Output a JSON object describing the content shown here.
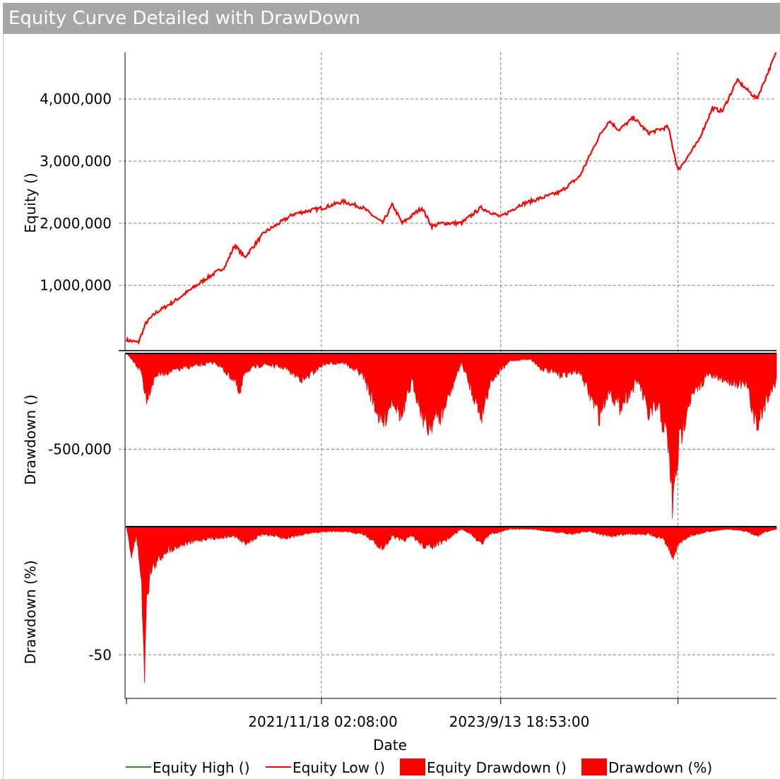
{
  "window": {
    "title": "Equity Curve Detailed with DrawDown"
  },
  "colors": {
    "equity_high": "#2e8b2e",
    "equity_low": "#ff0000",
    "fill": "#ff0000",
    "grid": "#808080"
  },
  "chart_data": {
    "type": "area",
    "title": "Equity Curve Detailed with DrawDown",
    "xlabel": "Date",
    "x_tick_labels": [
      "2021/11/18 02:08:00",
      "2023/9/13 18:53:00"
    ],
    "x_range_years": [
      2019.9,
      2026.5
    ],
    "x_ticks_years": [
      2021.88,
      2023.7
    ],
    "x_grid_years": [
      2019.9,
      2021.88,
      2023.7,
      2025.5
    ],
    "panels": [
      {
        "name": "equity",
        "ylabel": "Equity ()",
        "ylim": [
          -50000,
          4750000
        ],
        "yticks": [
          1000000,
          2000000,
          3000000,
          4000000
        ],
        "ytick_labels": [
          "1,000,000",
          "2,000,000",
          "3,000,000",
          "4,000,000"
        ],
        "series_x": [
          2019.9,
          2020.02,
          2020.1,
          2020.2,
          2020.4,
          2020.7,
          2020.9,
          2021.0,
          2021.1,
          2021.3,
          2021.45,
          2021.6,
          2021.9,
          2022.1,
          2022.3,
          2022.5,
          2022.6,
          2022.7,
          2022.9,
          2023.0,
          2023.1,
          2023.3,
          2023.5,
          2023.7,
          2023.9,
          2024.1,
          2024.3,
          2024.5,
          2024.7,
          2024.8,
          2024.9,
          2025.05,
          2025.2,
          2025.3,
          2025.4,
          2025.5,
          2025.7,
          2025.85,
          2025.95,
          2026.1,
          2026.3,
          2026.5
        ],
        "series": [
          {
            "name": "Equity High ()",
            "values": [
              120000,
              80000,
              400000,
              560000,
              760000,
              1100000,
              1300000,
              1650000,
              1450000,
              1850000,
              2000000,
              2150000,
              2250000,
              2350000,
              2250000,
              2000000,
              2300000,
              2000000,
              2250000,
              1950000,
              2000000,
              2000000,
              2250000,
              2100000,
              2300000,
              2400000,
              2500000,
              2750000,
              3400000,
              3650000,
              3500000,
              3700000,
              3450000,
              3500000,
              3550000,
              2850000,
              3300000,
              3850000,
              3800000,
              4300000,
              4000000,
              4750000
            ]
          },
          {
            "name": "Equity Low ()",
            "values": [
              120000,
              80000,
              400000,
              560000,
              760000,
              1100000,
              1300000,
              1650000,
              1450000,
              1850000,
              2000000,
              2150000,
              2250000,
              2350000,
              2250000,
              2000000,
              2300000,
              2000000,
              2250000,
              1950000,
              2000000,
              2000000,
              2250000,
              2100000,
              2300000,
              2400000,
              2500000,
              2750000,
              3400000,
              3650000,
              3500000,
              3700000,
              3450000,
              3500000,
              3550000,
              2850000,
              3300000,
              3850000,
              3800000,
              4300000,
              4000000,
              4750000
            ]
          }
        ]
      },
      {
        "name": "drawdown",
        "ylabel": "Drawdown ()",
        "ylim": [
          -900000,
          0
        ],
        "yticks": [
          -500000
        ],
        "ytick_labels": [
          "-500,000"
        ],
        "series_x": [
          2019.9,
          2020.05,
          2020.1,
          2020.2,
          2020.5,
          2020.8,
          2021.0,
          2021.05,
          2021.1,
          2021.3,
          2021.5,
          2021.7,
          2021.9,
          2022.1,
          2022.3,
          2022.5,
          2022.6,
          2022.7,
          2022.8,
          2022.95,
          2023.0,
          2023.1,
          2023.3,
          2023.4,
          2023.5,
          2023.6,
          2023.8,
          2024.0,
          2024.1,
          2024.3,
          2024.5,
          2024.7,
          2024.8,
          2024.9,
          2025.1,
          2025.2,
          2025.3,
          2025.4,
          2025.45,
          2025.5,
          2025.6,
          2025.8,
          2026.0,
          2026.2,
          2026.3,
          2026.4,
          2026.5
        ],
        "series": [
          {
            "name": "Equity Drawdown ()",
            "values": [
              0,
              -100000,
              -250000,
              -120000,
              -80000,
              -50000,
              -150000,
              -250000,
              -100000,
              -60000,
              -80000,
              -150000,
              -60000,
              -50000,
              -120000,
              -400000,
              -250000,
              -360000,
              -150000,
              -420000,
              -380000,
              -350000,
              -50000,
              -200000,
              -350000,
              -150000,
              -40000,
              -30000,
              -80000,
              -120000,
              -100000,
              -350000,
              -200000,
              -300000,
              -150000,
              -350000,
              -300000,
              -500000,
              -870000,
              -550000,
              -280000,
              -120000,
              -150000,
              -180000,
              -420000,
              -250000,
              -150000
            ]
          },
          {
            "name": "Drawdown (%)",
            "values": []
          }
        ]
      },
      {
        "name": "drawdown_pct",
        "ylabel": "Drawdown (%)",
        "ylim": [
          -67,
          0
        ],
        "yticks": [
          -50
        ],
        "ytick_labels": [
          "-50"
        ],
        "series_x": [
          2019.9,
          2019.95,
          2020.0,
          2020.05,
          2020.08,
          2020.1,
          2020.15,
          2020.3,
          2020.5,
          2020.7,
          2021.0,
          2021.1,
          2021.3,
          2021.5,
          2021.7,
          2021.9,
          2022.1,
          2022.3,
          2022.5,
          2022.6,
          2022.7,
          2022.8,
          2022.95,
          2023.0,
          2023.1,
          2023.3,
          2023.4,
          2023.5,
          2023.6,
          2023.8,
          2024.0,
          2024.2,
          2024.4,
          2024.6,
          2024.8,
          2025.0,
          2025.2,
          2025.35,
          2025.45,
          2025.5,
          2025.6,
          2025.8,
          2026.0,
          2026.2,
          2026.3,
          2026.4,
          2026.5
        ],
        "series": [
          {
            "name": "Drawdown (%)",
            "values": [
              0,
              -12,
              -4,
              -20,
              -64,
              -30,
              -18,
              -10,
              -7,
              -5,
              -4,
              -7,
              -3,
              -5,
              -3,
              -2,
              -2,
              -3,
              -9,
              -4,
              -6,
              -4,
              -9,
              -8,
              -7,
              -1,
              -3,
              -7,
              -3,
              -1,
              -1,
              -2,
              -3,
              -2,
              -4,
              -3,
              -3,
              -5,
              -12,
              -8,
              -4,
              -2,
              -1,
              -2,
              -4,
              -2,
              -1
            ]
          }
        ]
      }
    ],
    "legend": [
      "Equity High ()",
      "Equity Low ()",
      "Equity Drawdown ()",
      "Drawdown (%)"
    ],
    "legend_position": "bottom"
  }
}
